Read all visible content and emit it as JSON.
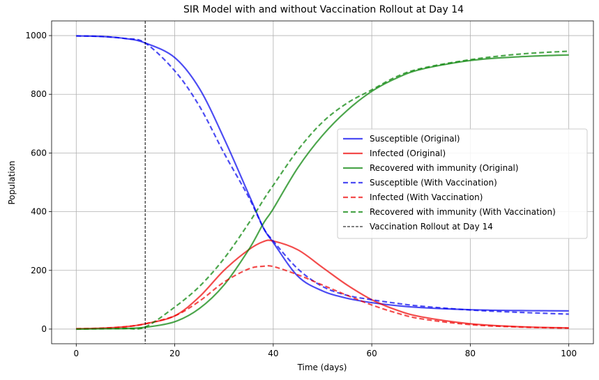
{
  "chart_data": {
    "type": "line",
    "title": "SIR Model with and without Vaccination Rollout at Day 14",
    "xlabel": "Time (days)",
    "ylabel": "Population",
    "xlim": [
      -5,
      105
    ],
    "ylim": [
      -50,
      1050
    ],
    "xticks": [
      0,
      20,
      40,
      60,
      80,
      100
    ],
    "yticks": [
      0,
      200,
      400,
      600,
      800,
      1000
    ],
    "grid": true,
    "legend_position": "center-right",
    "vline": {
      "x": 14,
      "label": "Vaccination Rollout at Day 14",
      "color": "#000000"
    },
    "series": [
      {
        "name": "Susceptible (Original)",
        "color": "#0000ee",
        "dash": false,
        "points": [
          [
            0,
            999
          ],
          [
            5,
            997
          ],
          [
            10,
            990
          ],
          [
            14,
            975
          ],
          [
            20,
            925
          ],
          [
            25,
            820
          ],
          [
            30,
            650
          ],
          [
            35,
            460
          ],
          [
            38,
            345
          ],
          [
            40,
            295
          ],
          [
            45,
            180
          ],
          [
            50,
            130
          ],
          [
            55,
            105
          ],
          [
            60,
            90
          ],
          [
            65,
            80
          ],
          [
            70,
            73
          ],
          [
            80,
            66
          ],
          [
            90,
            63
          ],
          [
            100,
            62
          ]
        ]
      },
      {
        "name": "Infected (Original)",
        "color": "#ee0000",
        "dash": false,
        "points": [
          [
            0,
            1
          ],
          [
            5,
            3
          ],
          [
            10,
            8
          ],
          [
            14,
            18
          ],
          [
            20,
            45
          ],
          [
            25,
            110
          ],
          [
            30,
            200
          ],
          [
            35,
            270
          ],
          [
            38,
            298
          ],
          [
            40,
            300
          ],
          [
            45,
            270
          ],
          [
            50,
            210
          ],
          [
            55,
            150
          ],
          [
            60,
            100
          ],
          [
            65,
            65
          ],
          [
            70,
            42
          ],
          [
            80,
            18
          ],
          [
            90,
            8
          ],
          [
            100,
            4
          ]
        ]
      },
      {
        "name": "Recovered with immunity (Original)",
        "color": "#008000",
        "dash": false,
        "points": [
          [
            0,
            0
          ],
          [
            5,
            1
          ],
          [
            10,
            2
          ],
          [
            14,
            6
          ],
          [
            20,
            25
          ],
          [
            25,
            70
          ],
          [
            30,
            150
          ],
          [
            35,
            270
          ],
          [
            38,
            360
          ],
          [
            40,
            410
          ],
          [
            45,
            550
          ],
          [
            50,
            660
          ],
          [
            55,
            745
          ],
          [
            60,
            810
          ],
          [
            65,
            855
          ],
          [
            70,
            885
          ],
          [
            80,
            915
          ],
          [
            90,
            928
          ],
          [
            100,
            934
          ]
        ]
      },
      {
        "name": "Susceptible (With Vaccination)",
        "color": "#0000ee",
        "dash": true,
        "points": [
          [
            0,
            999
          ],
          [
            5,
            997
          ],
          [
            10,
            990
          ],
          [
            14,
            975
          ],
          [
            20,
            880
          ],
          [
            25,
            760
          ],
          [
            30,
            600
          ],
          [
            35,
            450
          ],
          [
            38,
            345
          ],
          [
            40,
            300
          ],
          [
            45,
            205
          ],
          [
            50,
            145
          ],
          [
            55,
            115
          ],
          [
            60,
            100
          ],
          [
            65,
            88
          ],
          [
            70,
            78
          ],
          [
            80,
            65
          ],
          [
            90,
            57
          ],
          [
            100,
            51
          ]
        ]
      },
      {
        "name": "Infected (With Vaccination)",
        "color": "#ee0000",
        "dash": true,
        "points": [
          [
            0,
            1
          ],
          [
            5,
            3
          ],
          [
            10,
            8
          ],
          [
            14,
            18
          ],
          [
            20,
            45
          ],
          [
            25,
            95
          ],
          [
            30,
            160
          ],
          [
            35,
            205
          ],
          [
            38,
            214
          ],
          [
            40,
            213
          ],
          [
            45,
            185
          ],
          [
            50,
            150
          ],
          [
            55,
            115
          ],
          [
            60,
            82
          ],
          [
            65,
            55
          ],
          [
            70,
            35
          ],
          [
            80,
            15
          ],
          [
            90,
            7
          ],
          [
            100,
            3
          ]
        ]
      },
      {
        "name": "Recovered with immunity (With Vaccination)",
        "color": "#008000",
        "dash": true,
        "points": [
          [
            0,
            0
          ],
          [
            5,
            1
          ],
          [
            10,
            2
          ],
          [
            14,
            7
          ],
          [
            20,
            75
          ],
          [
            25,
            145
          ],
          [
            30,
            240
          ],
          [
            35,
            360
          ],
          [
            38,
            440
          ],
          [
            40,
            490
          ],
          [
            45,
            610
          ],
          [
            50,
            705
          ],
          [
            55,
            770
          ],
          [
            60,
            815
          ],
          [
            65,
            860
          ],
          [
            70,
            888
          ],
          [
            80,
            918
          ],
          [
            90,
            937
          ],
          [
            100,
            947
          ]
        ]
      }
    ]
  }
}
